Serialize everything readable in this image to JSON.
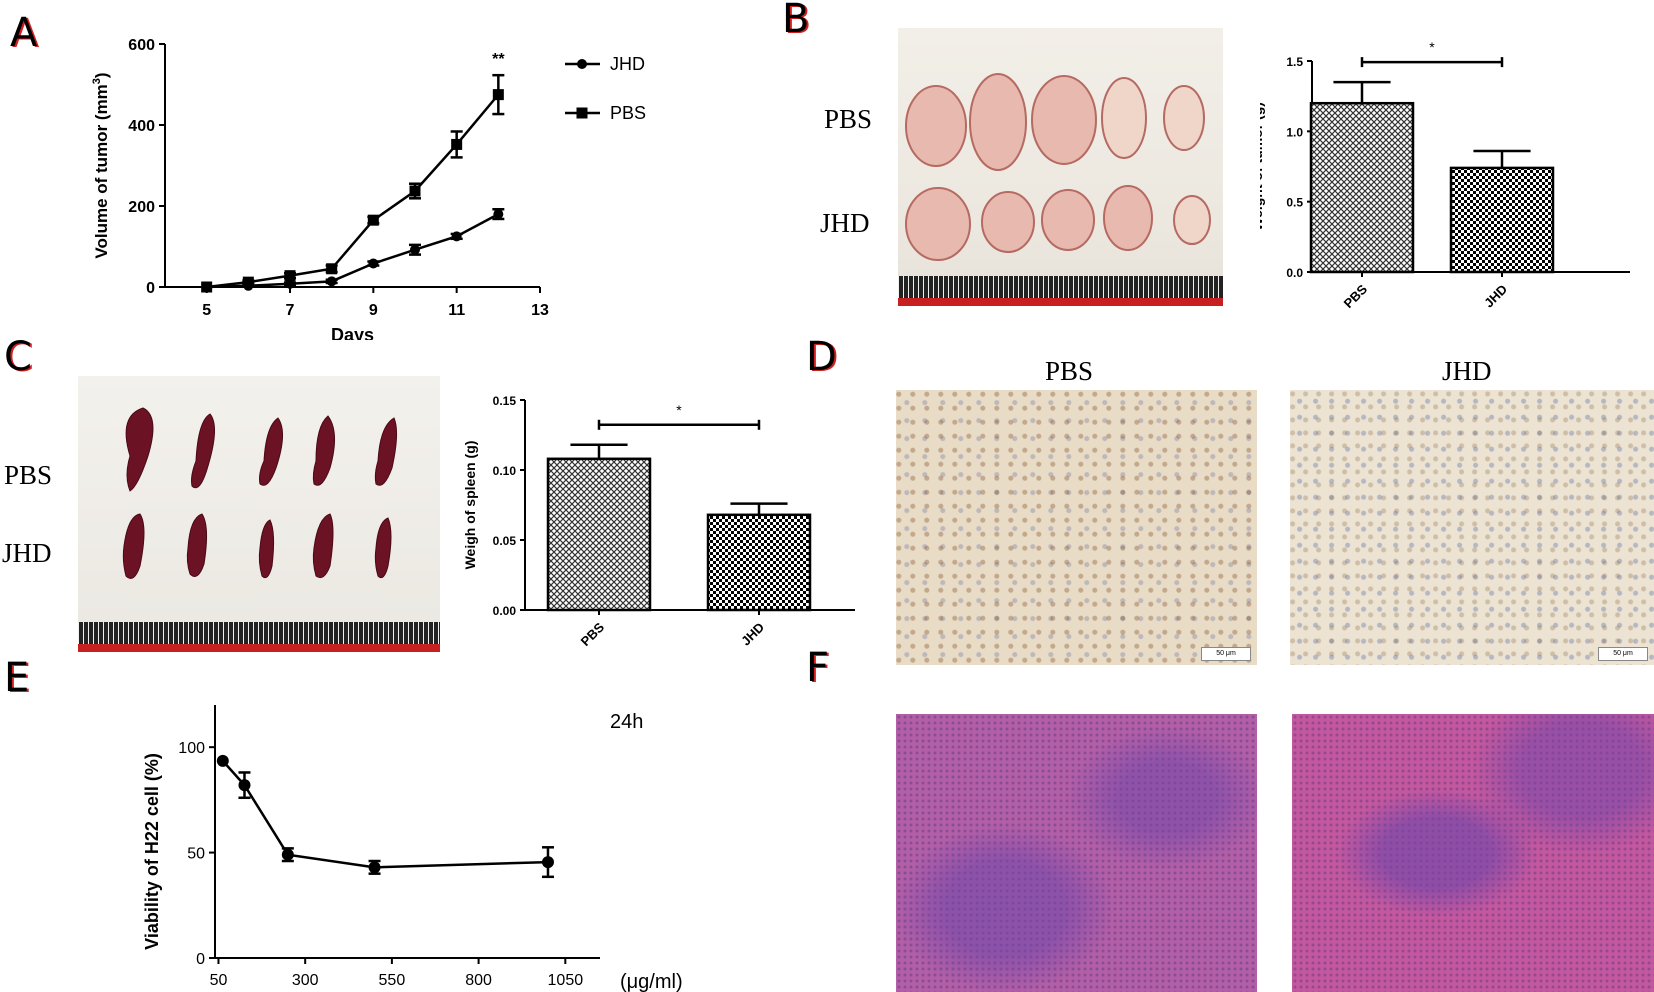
{
  "panels": {
    "a": "A",
    "b": "B",
    "c": "C",
    "d": "D",
    "e": "E",
    "f": "F"
  },
  "photos": {
    "b_rows": [
      "PBS",
      "JHD"
    ],
    "c_rows": [
      "PBS",
      "JHD"
    ],
    "d_titles": [
      "PBS",
      "JHD"
    ],
    "scale_label": "50 μm"
  },
  "colors": {
    "ink": "#000000",
    "photo_bg": "#ede9e1",
    "ruler_red": "#c62020"
  },
  "chart_data": [
    {
      "id": "A",
      "type": "line",
      "xlabel": "Days",
      "ylabel_main": "Volume of tumor (mm",
      "ylabel_sup": "3",
      "ylabel_end": ")",
      "xlim": [
        4,
        13
      ],
      "ylim": [
        0,
        600
      ],
      "xticks": [
        5,
        7,
        9,
        11,
        13
      ],
      "yticks": [
        0,
        200,
        400,
        600
      ],
      "annotation": "**",
      "series": [
        {
          "name": "JHD",
          "marker": "circle",
          "x": [
            5,
            6,
            7,
            8,
            9,
            10,
            11,
            12
          ],
          "y": [
            0,
            3,
            8,
            14,
            58,
            92,
            125,
            180
          ],
          "err": [
            0,
            2,
            3,
            4,
            5,
            12,
            6,
            12
          ]
        },
        {
          "name": "PBS",
          "marker": "square",
          "x": [
            5,
            6,
            7,
            8,
            9,
            10,
            11,
            12
          ],
          "y": [
            0,
            12,
            28,
            45,
            165,
            237,
            352,
            475
          ],
          "err": [
            0,
            4,
            6,
            8,
            8,
            18,
            32,
            48
          ]
        }
      ],
      "legend_position": "right"
    },
    {
      "id": "B",
      "type": "bar",
      "categories": [
        "PBS",
        "JHD"
      ],
      "values": [
        1.2,
        0.74
      ],
      "err": [
        0.15,
        0.12
      ],
      "ylabel": "Weight of tumor (g)",
      "ylim": [
        0,
        1.5
      ],
      "yticks": [
        "0.0",
        "0.5",
        "1.0",
        "1.5"
      ],
      "annotation": "*"
    },
    {
      "id": "C",
      "type": "bar",
      "categories": [
        "PBS",
        "JHD"
      ],
      "values": [
        0.108,
        0.068
      ],
      "err": [
        0.01,
        0.008
      ],
      "ylabel": "Weigh of spleen (g)",
      "ylim": [
        0,
        0.15
      ],
      "yticks": [
        "0.00",
        "0.05",
        "0.10",
        "0.15"
      ],
      "annotation": "*"
    },
    {
      "id": "E",
      "type": "line",
      "ylabel": "Viability of H22 cell (%)",
      "xunit": "(μg/ml)",
      "title_right": "24h",
      "xlim": [
        40,
        1150
      ],
      "ylim": [
        0,
        120
      ],
      "xticks": [
        50,
        300,
        550,
        800,
        1050
      ],
      "yticks": [
        0,
        50,
        100
      ],
      "series": [
        {
          "name": "",
          "marker": "circle",
          "x": [
            62.5,
            125,
            250,
            500,
            1000
          ],
          "y": [
            93.5,
            82,
            49,
            43,
            45.5
          ],
          "err": [
            0,
            6,
            3,
            3,
            7
          ]
        }
      ]
    }
  ]
}
